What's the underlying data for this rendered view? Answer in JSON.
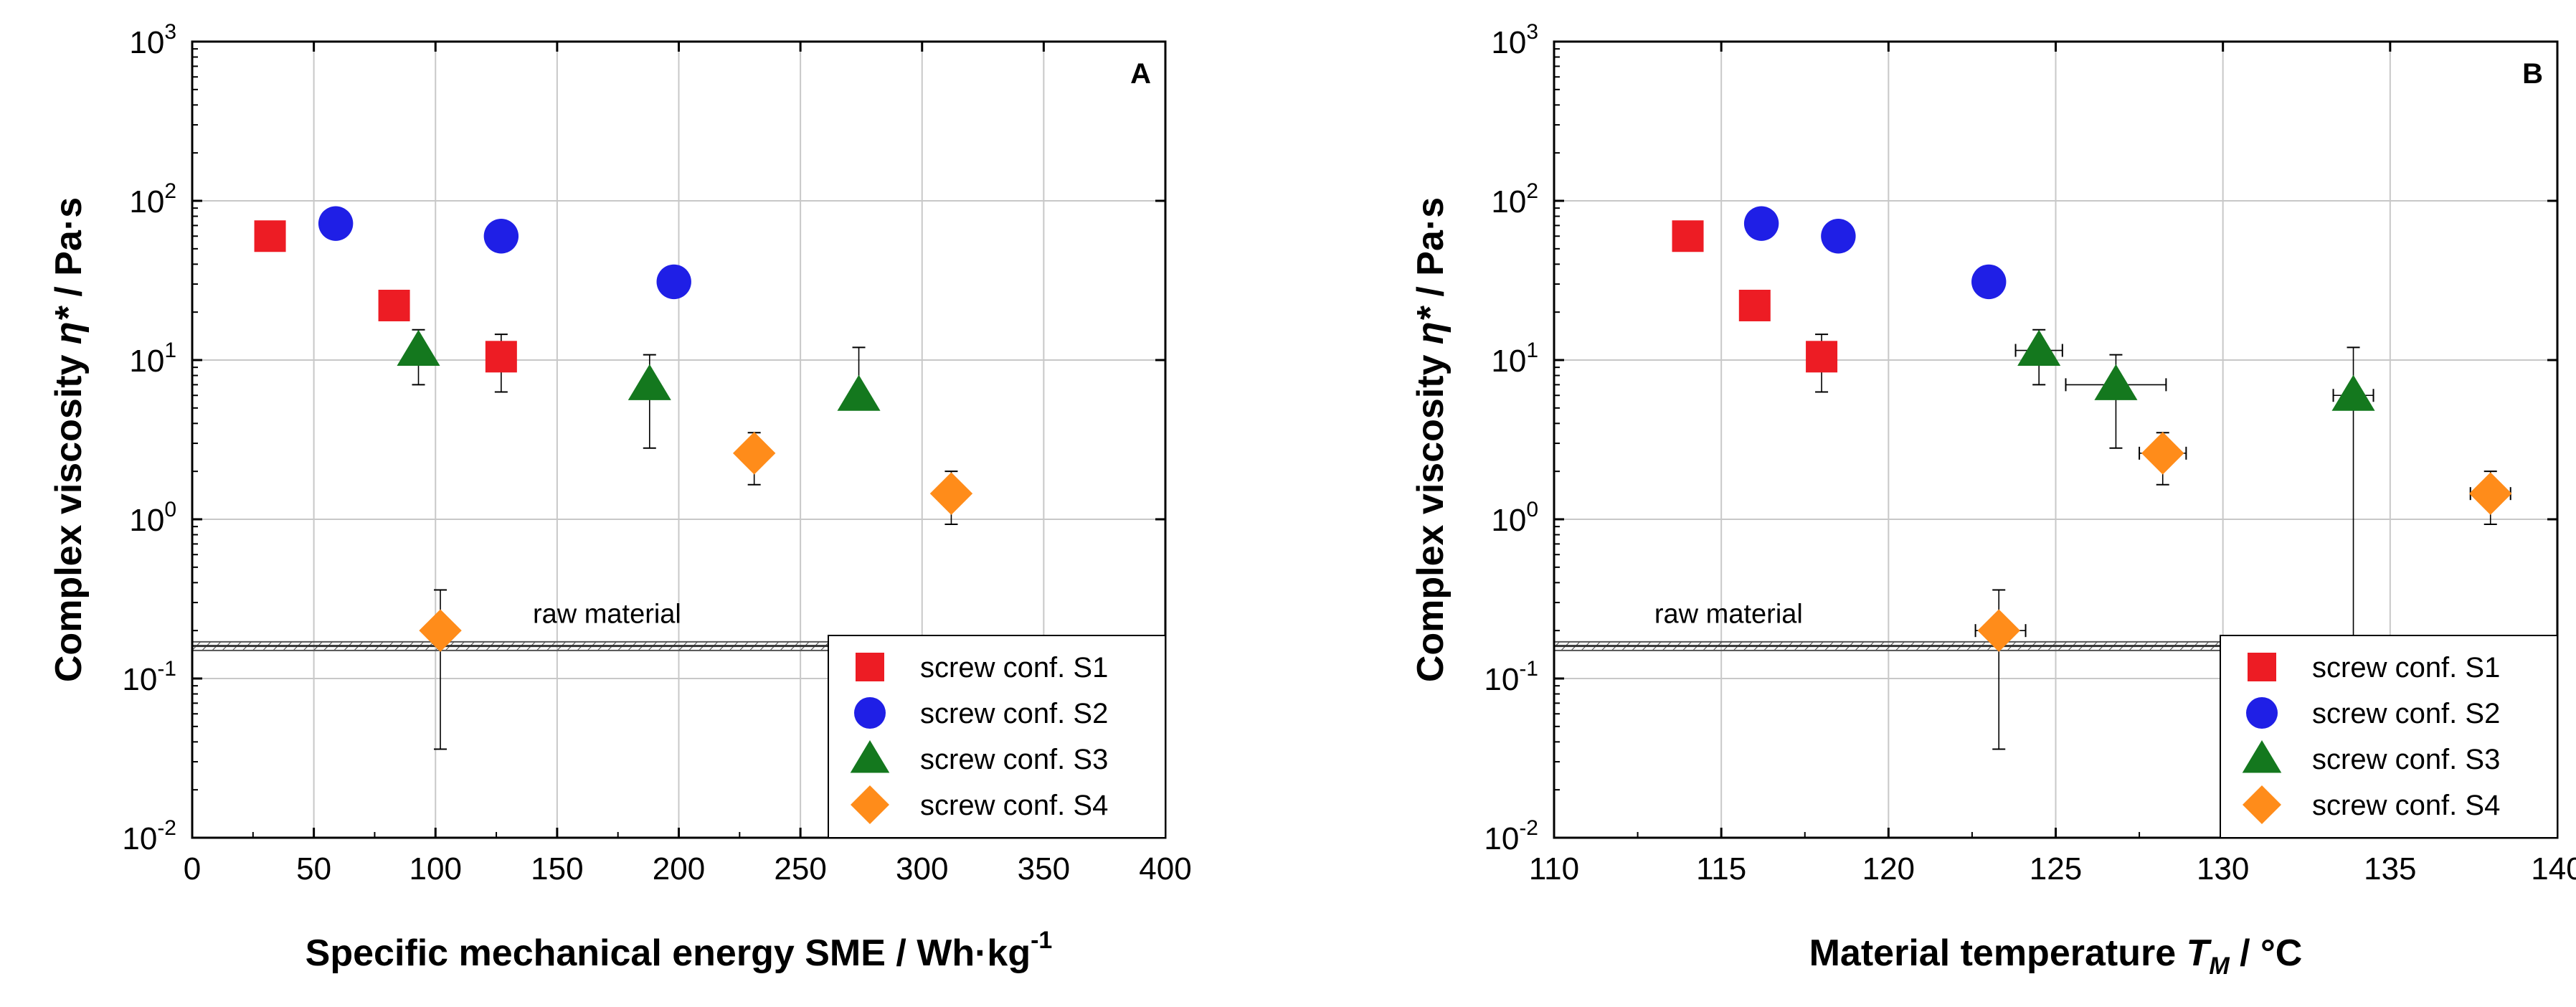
{
  "figure": {
    "colors": {
      "S1": "#ed1c24",
      "S2": "#1f1fe6",
      "S3": "#14781e",
      "S4": "#ff8c1a",
      "axis": "#000000",
      "grid": "#c8c8c8"
    }
  },
  "chart_data": [
    {
      "type": "scatter",
      "panel_label": "A",
      "xlabel": "Specific mechanical energy SME / Wh·kg",
      "xlabel_sup": "-1",
      "ylabel_main": "Complex viscosity ",
      "ylabel_symbol": "η*",
      "ylabel_unit": " / Pa·s",
      "xlim": [
        0,
        400
      ],
      "ylim_log10": [
        -2,
        3
      ],
      "yscale": "log",
      "x_ticks": [
        "0",
        "50",
        "100",
        "150",
        "200",
        "250",
        "300",
        "350",
        "400"
      ],
      "x_tick_values": [
        0,
        50,
        100,
        150,
        200,
        250,
        300,
        350,
        400
      ],
      "y_tick_base": "10",
      "y_tick_exponents": [
        "-2",
        "-1",
        "0",
        "1",
        "2",
        "3"
      ],
      "grid": true,
      "reference_line": {
        "label": "raw material",
        "y": 0.16,
        "band": [
          0.15,
          0.17
        ]
      },
      "legend_position": "bottom-right",
      "series": [
        {
          "key": "S1",
          "name": "screw conf. S1",
          "marker": "square",
          "points": [
            {
              "x": 32,
              "y": 60,
              "ylo": 57,
              "yhi": 63
            },
            {
              "x": 83,
              "y": 22,
              "ylo": 20.5,
              "yhi": 23.5
            },
            {
              "x": 127,
              "y": 10.5,
              "ylo": 6.3,
              "yhi": 14.5
            }
          ]
        },
        {
          "key": "S2",
          "name": "screw conf. S2",
          "marker": "circle",
          "points": [
            {
              "x": 59,
              "y": 72,
              "ylo": 69,
              "yhi": 75
            },
            {
              "x": 127,
              "y": 60,
              "ylo": 57,
              "yhi": 63
            },
            {
              "x": 198,
              "y": 31,
              "ylo": 29.5,
              "yhi": 32.5
            }
          ]
        },
        {
          "key": "S3",
          "name": "screw conf. S3",
          "marker": "triangle",
          "points": [
            {
              "x": 93,
              "y": 11.5,
              "ylo": 7,
              "yhi": 15.5
            },
            {
              "x": 188,
              "y": 7,
              "ylo": 2.8,
              "yhi": 10.8
            },
            {
              "x": 274,
              "y": 6,
              "ylo": 5.5,
              "yhi": 12
            }
          ]
        },
        {
          "key": "S4",
          "name": "screw conf. S4",
          "marker": "diamond",
          "points": [
            {
              "x": 102,
              "y": 0.2,
              "ylo": 0.036,
              "yhi": 0.36
            },
            {
              "x": 231,
              "y": 2.6,
              "ylo": 1.65,
              "yhi": 3.5
            },
            {
              "x": 312,
              "y": 1.45,
              "ylo": 0.93,
              "yhi": 2.0
            }
          ]
        }
      ]
    },
    {
      "type": "scatter",
      "panel_label": "B",
      "xlabel": "Material temperature ",
      "xlabel_symbol": "T",
      "xlabel_sub": "M",
      "xlabel_unit": " / °C",
      "ylabel_main": "Complex viscosity ",
      "ylabel_symbol": "η*",
      "ylabel_unit": " / Pa·s",
      "xlim": [
        110,
        140
      ],
      "ylim_log10": [
        -2,
        3
      ],
      "yscale": "log",
      "x_ticks": [
        "110",
        "115",
        "120",
        "125",
        "130",
        "135",
        "140"
      ],
      "x_tick_values": [
        110,
        115,
        120,
        125,
        130,
        135,
        140
      ],
      "y_tick_base": "10",
      "y_tick_exponents": [
        "-2",
        "-1",
        "0",
        "1",
        "2",
        "3"
      ],
      "grid": true,
      "reference_line": {
        "label": "raw material",
        "y": 0.16,
        "band": [
          0.15,
          0.17
        ]
      },
      "legend_position": "bottom-right",
      "series": [
        {
          "key": "S1",
          "name": "screw conf. S1",
          "marker": "square",
          "points": [
            {
              "x": 114,
              "y": 60,
              "ylo": 52,
              "yhi": 68,
              "xlo": 113.7,
              "xhi": 114.3
            },
            {
              "x": 116,
              "y": 22,
              "ylo": 20.5,
              "yhi": 23.5
            },
            {
              "x": 118,
              "y": 10.5,
              "ylo": 6.3,
              "yhi": 14.5,
              "xlo": 117.6,
              "xhi": 118.4
            }
          ]
        },
        {
          "key": "S2",
          "name": "screw conf. S2",
          "marker": "circle",
          "points": [
            {
              "x": 116.2,
              "y": 72,
              "ylo": 69,
              "yhi": 75
            },
            {
              "x": 118.5,
              "y": 60,
              "ylo": 57,
              "yhi": 63
            },
            {
              "x": 123,
              "y": 31,
              "ylo": 29.5,
              "yhi": 32.5
            }
          ]
        },
        {
          "key": "S3",
          "name": "screw conf. S3",
          "marker": "triangle",
          "points": [
            {
              "x": 124.5,
              "y": 11.5,
              "ylo": 7,
              "yhi": 15.5,
              "xlo": 123.8,
              "xhi": 125.2
            },
            {
              "x": 126.8,
              "y": 7,
              "ylo": 2.8,
              "yhi": 10.8,
              "xlo": 125.3,
              "xhi": 128.3
            },
            {
              "x": 133.9,
              "y": 6,
              "ylo": 0.17,
              "yhi": 12,
              "xlo": 133.3,
              "xhi": 134.5
            }
          ]
        },
        {
          "key": "S4",
          "name": "screw conf. S4",
          "marker": "diamond",
          "points": [
            {
              "x": 123.3,
              "y": 0.2,
              "ylo": 0.036,
              "yhi": 0.36,
              "xlo": 122.6,
              "xhi": 124.1
            },
            {
              "x": 128.2,
              "y": 2.6,
              "ylo": 1.65,
              "yhi": 3.5,
              "xlo": 127.5,
              "xhi": 128.9
            },
            {
              "x": 138,
              "y": 1.45,
              "ylo": 0.93,
              "yhi": 2.0,
              "xlo": 137.4,
              "xhi": 138.6
            }
          ]
        }
      ]
    }
  ]
}
